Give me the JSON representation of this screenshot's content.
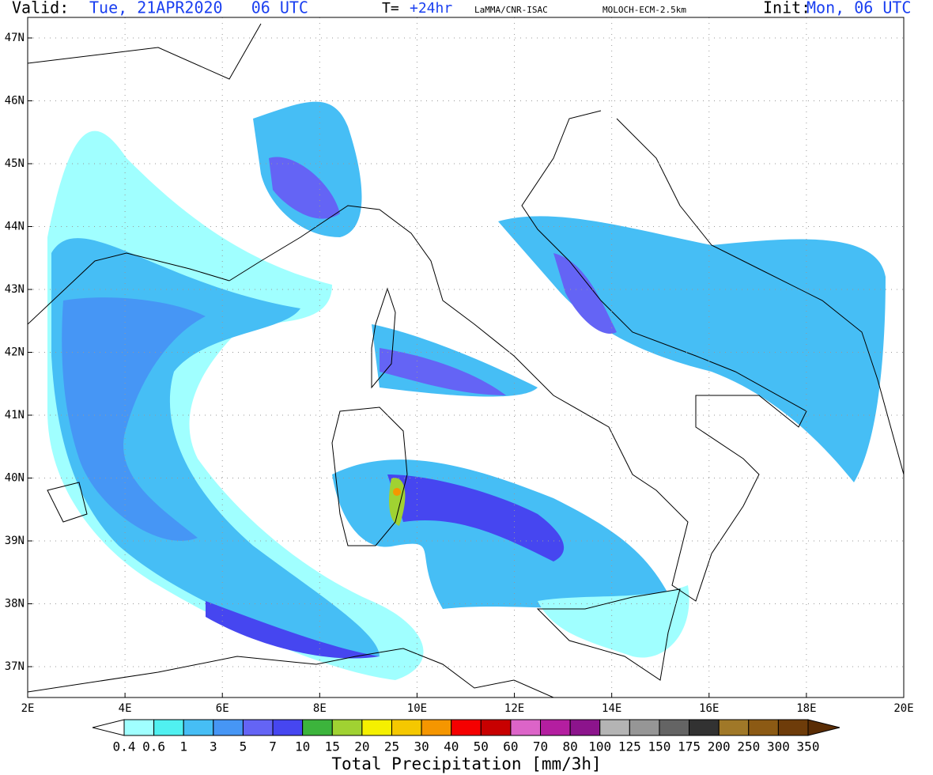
{
  "header": {
    "valid_label": "Valid:",
    "valid_time": "Tue, 21APR2020   06 UTC",
    "step_label": "T=",
    "step": "+24hr",
    "source": "LaMMA/CNR-ISAC",
    "model": "MOLOCH-ECM-2.5km",
    "init_label": "Init:",
    "init_time": "Mon, 06 UTC"
  },
  "map": {
    "lat_labels": [
      "47N",
      "46N",
      "45N",
      "44N",
      "43N",
      "42N",
      "41N",
      "40N",
      "39N",
      "38N",
      "37N"
    ],
    "lon_labels": [
      "2E",
      "4E",
      "6E",
      "8E",
      "10E",
      "12E",
      "14E",
      "16E",
      "18E",
      "20E"
    ]
  },
  "colorbar": {
    "title": "Total Precipitation [mm/3h]",
    "labels": [
      "0.4",
      "0.6",
      "1",
      "3",
      "5",
      "7",
      "10",
      "15",
      "20",
      "25",
      "30",
      "40",
      "50",
      "60",
      "70",
      "80",
      "100",
      "125",
      "150",
      "175",
      "200",
      "250",
      "300",
      "350"
    ],
    "colors": [
      "#ffffff",
      "#a0ffff",
      "#50f0f0",
      "#46bef5",
      "#4696f5",
      "#6464f5",
      "#4646f0",
      "#3cb43c",
      "#a0d232",
      "#f5f000",
      "#f5c800",
      "#f59600",
      "#f50000",
      "#c80000",
      "#dc64c8",
      "#b41ea0",
      "#8c148c",
      "#b4b4b4",
      "#969696",
      "#646464",
      "#323232",
      "#a07828",
      "#8c5a14",
      "#6e3c0a",
      "#5a2d05"
    ]
  }
}
